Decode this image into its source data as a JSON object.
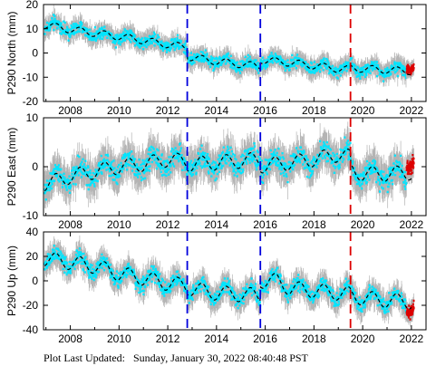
{
  "footer": {
    "label": "Plot Last Updated:",
    "timestamp": "Sunday, January 30, 2022 08:40:48 PST"
  },
  "colors": {
    "error_bars": "#b4b4b4",
    "points": "#00e5ff",
    "trend": "#000000",
    "recent_points": "#dd0000",
    "blue_marker": "#0000dd",
    "red_marker": "#dd0000"
  },
  "chart_data": [
    {
      "type": "scatter",
      "component": "north",
      "ylabel": "P290 North (mm)",
      "xlim": [
        2006.9,
        2022.6
      ],
      "ylim": [
        -20,
        20
      ],
      "xticks": [
        2008,
        2010,
        2012,
        2014,
        2016,
        2018,
        2020,
        2022
      ],
      "yticks": [
        -20,
        -10,
        0,
        10,
        20
      ],
      "vertical_lines": [
        {
          "x": 2012.8,
          "style": "dashed",
          "color": "blue"
        },
        {
          "x": 2015.8,
          "style": "dashed",
          "color": "blue"
        },
        {
          "x": 2019.5,
          "style": "dashed",
          "color": "red"
        }
      ],
      "trend": {
        "x": [
          2007.0,
          2008.0,
          2009.0,
          2010.0,
          2011.0,
          2012.0,
          2012.79,
          2012.81,
          2014.0,
          2015.79,
          2015.81,
          2017.0,
          2018.0,
          2019.0,
          2019.49,
          2019.51,
          2020.0,
          2021.0,
          2022.0
        ],
        "y": [
          11.5,
          9.7,
          8.2,
          6.8,
          5.2,
          3.5,
          2.3,
          -1.5,
          -3.5,
          -5.5,
          -2.8,
          -4.0,
          -5.2,
          -6.5,
          -6.8,
          -6.2,
          -6.5,
          -7.0,
          -7.5
        ]
      },
      "seasonal_amplitude": 1.5,
      "scatter_spread": 1.8,
      "error_bar_half": 3.0,
      "recent_range": [
        2021.8,
        2022.1
      ],
      "recent_offset": 2.0
    },
    {
      "type": "scatter",
      "component": "east",
      "ylabel": "P290 East (mm)",
      "xlim": [
        2006.9,
        2022.6
      ],
      "ylim": [
        -10,
        10
      ],
      "xticks": [
        2008,
        2010,
        2012,
        2014,
        2016,
        2018,
        2020,
        2022
      ],
      "yticks": [
        -10,
        0,
        10
      ],
      "vertical_lines": [
        {
          "x": 2012.8,
          "style": "dashed",
          "color": "blue"
        },
        {
          "x": 2015.8,
          "style": "dashed",
          "color": "blue"
        },
        {
          "x": 2019.5,
          "style": "dashed",
          "color": "red"
        }
      ],
      "trend": {
        "x": [
          2007.0,
          2008.0,
          2009.0,
          2010.0,
          2011.0,
          2012.0,
          2012.79,
          2012.81,
          2014.0,
          2015.79,
          2015.81,
          2017.0,
          2018.0,
          2019.0,
          2019.49,
          2019.51,
          2020.0,
          2021.0,
          2022.0
        ],
        "y": [
          -3.5,
          -2.0,
          -1.0,
          0.0,
          0.5,
          1.5,
          1.0,
          0.5,
          0.8,
          1.5,
          0.2,
          0.8,
          1.5,
          2.5,
          2.0,
          -0.5,
          -1.5,
          -1.5,
          -1.2
        ]
      },
      "seasonal_amplitude": 1.5,
      "scatter_spread": 1.5,
      "error_bar_half": 2.6,
      "recent_range": [
        2021.8,
        2022.1
      ],
      "recent_offset": 2.5
    },
    {
      "type": "scatter",
      "component": "up",
      "ylabel": "P290 Up (mm)",
      "xlim": [
        2006.9,
        2022.6
      ],
      "ylim": [
        -40,
        40
      ],
      "xticks": [
        2008,
        2010,
        2012,
        2014,
        2016,
        2018,
        2020,
        2022
      ],
      "yticks": [
        -40,
        -20,
        0,
        20,
        40
      ],
      "vertical_lines": [
        {
          "x": 2012.8,
          "style": "dashed",
          "color": "blue"
        },
        {
          "x": 2015.8,
          "style": "dashed",
          "color": "blue"
        },
        {
          "x": 2019.5,
          "style": "dashed",
          "color": "red"
        }
      ],
      "trend": {
        "x": [
          2007.0,
          2008.0,
          2009.0,
          2010.0,
          2011.0,
          2012.0,
          2012.79,
          2012.81,
          2014.0,
          2015.79,
          2015.81,
          2016.5,
          2017.0,
          2018.0,
          2019.0,
          2019.49,
          2019.51,
          2020.0,
          2021.0,
          2022.0
        ],
        "y": [
          18.0,
          15.0,
          12.0,
          6.0,
          2.0,
          -2.0,
          -4.0,
          -6.0,
          -10.0,
          -12.0,
          0.0,
          0.0,
          -6.0,
          -8.0,
          -10.0,
          -11.0,
          -12.0,
          -14.0,
          -16.0,
          -17.0
        ]
      },
      "seasonal_amplitude": 6.0,
      "scatter_spread": 4.5,
      "error_bar_half": 7.5,
      "recent_range": [
        2021.8,
        2022.1
      ],
      "recent_offset": -3.0
    }
  ]
}
